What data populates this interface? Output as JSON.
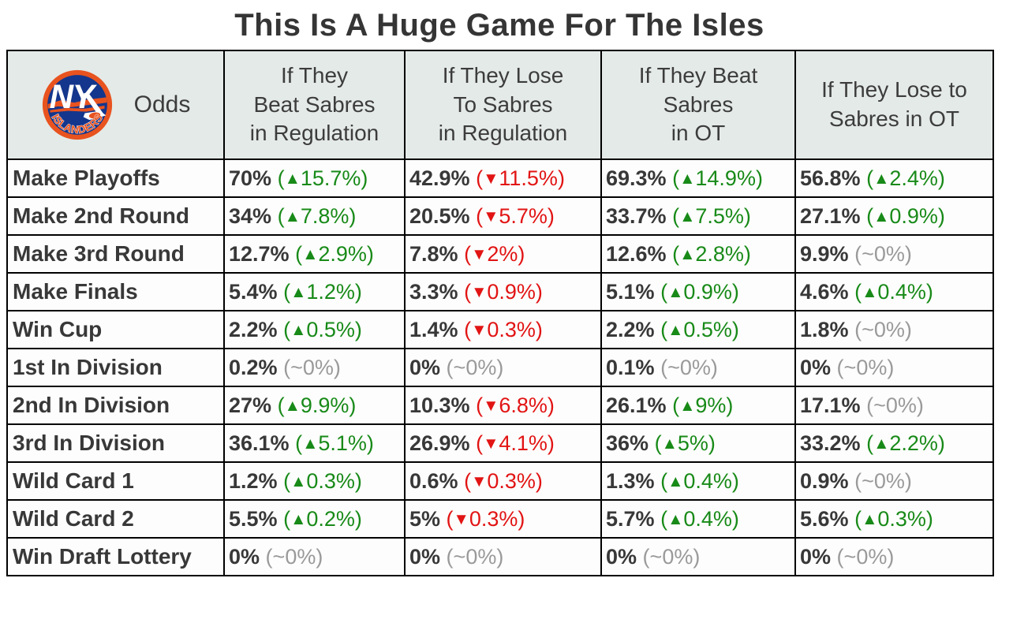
{
  "title": "This Is A Huge Game For The Isles",
  "icons": {
    "logo": "ny-islanders-logo",
    "up_arrow": "▲",
    "down_arrow": "▼"
  },
  "colors": {
    "positive_change": "#188a18",
    "negative_change": "#e21414",
    "neutral_change": "#9a9a9a",
    "header_background": "#e4eae8",
    "text": "#383838",
    "grid_border": "#000000",
    "logo_orange": "#e8531f",
    "logo_blue": "#14368c"
  },
  "chart_data": {
    "type": "table",
    "title": "This Is A Huge Game For The Isles",
    "columns": [
      "Odds",
      "If They Beat Sabres in Regulation",
      "If They Lose To Sabres in Regulation",
      "If They Beat Sabres in OT",
      "If They Lose to Sabres in OT"
    ],
    "column_lines": [
      [
        "If They",
        "Beat Sabres",
        "in Regulation"
      ],
      [
        "If They Lose",
        "To Sabres",
        "in Regulation"
      ],
      [
        "If They Beat",
        "Sabres",
        "in OT"
      ],
      [
        "If They Lose to",
        "Sabres in OT"
      ]
    ],
    "rows": [
      {
        "label": "Make Playoffs",
        "cells": [
          {
            "value": "70%",
            "delta": "15.7%",
            "direction": "up"
          },
          {
            "value": "42.9%",
            "delta": "11.5%",
            "direction": "down"
          },
          {
            "value": "69.3%",
            "delta": "14.9%",
            "direction": "up"
          },
          {
            "value": "56.8%",
            "delta": "2.4%",
            "direction": "up"
          }
        ]
      },
      {
        "label": "Make 2nd Round",
        "cells": [
          {
            "value": "34%",
            "delta": "7.8%",
            "direction": "up"
          },
          {
            "value": "20.5%",
            "delta": "5.7%",
            "direction": "down"
          },
          {
            "value": "33.7%",
            "delta": "7.5%",
            "direction": "up"
          },
          {
            "value": "27.1%",
            "delta": "0.9%",
            "direction": "up"
          }
        ]
      },
      {
        "label": "Make 3rd Round",
        "cells": [
          {
            "value": "12.7%",
            "delta": "2.9%",
            "direction": "up"
          },
          {
            "value": "7.8%",
            "delta": "2%",
            "direction": "down"
          },
          {
            "value": "12.6%",
            "delta": "2.8%",
            "direction": "up"
          },
          {
            "value": "9.9%",
            "delta": "~0%",
            "direction": "flat"
          }
        ]
      },
      {
        "label": "Make Finals",
        "cells": [
          {
            "value": "5.4%",
            "delta": "1.2%",
            "direction": "up"
          },
          {
            "value": "3.3%",
            "delta": "0.9%",
            "direction": "down"
          },
          {
            "value": "5.1%",
            "delta": "0.9%",
            "direction": "up"
          },
          {
            "value": "4.6%",
            "delta": "0.4%",
            "direction": "up"
          }
        ]
      },
      {
        "label": "Win Cup",
        "cells": [
          {
            "value": "2.2%",
            "delta": "0.5%",
            "direction": "up"
          },
          {
            "value": "1.4%",
            "delta": "0.3%",
            "direction": "down"
          },
          {
            "value": "2.2%",
            "delta": "0.5%",
            "direction": "up"
          },
          {
            "value": "1.8%",
            "delta": "~0%",
            "direction": "flat"
          }
        ]
      },
      {
        "label": "1st In Division",
        "cells": [
          {
            "value": "0.2%",
            "delta": "~0%",
            "direction": "flat"
          },
          {
            "value": "0%",
            "delta": "~0%",
            "direction": "flat"
          },
          {
            "value": "0.1%",
            "delta": "~0%",
            "direction": "flat"
          },
          {
            "value": "0%",
            "delta": "~0%",
            "direction": "flat"
          }
        ]
      },
      {
        "label": "2nd In Division",
        "cells": [
          {
            "value": "27%",
            "delta": "9.9%",
            "direction": "up"
          },
          {
            "value": "10.3%",
            "delta": "6.8%",
            "direction": "down"
          },
          {
            "value": "26.1%",
            "delta": "9%",
            "direction": "up"
          },
          {
            "value": "17.1%",
            "delta": "~0%",
            "direction": "flat"
          }
        ]
      },
      {
        "label": "3rd In Division",
        "cells": [
          {
            "value": "36.1%",
            "delta": "5.1%",
            "direction": "up"
          },
          {
            "value": "26.9%",
            "delta": "4.1%",
            "direction": "down"
          },
          {
            "value": "36%",
            "delta": "5%",
            "direction": "up"
          },
          {
            "value": "33.2%",
            "delta": "2.2%",
            "direction": "up"
          }
        ]
      },
      {
        "label": "Wild Card 1",
        "cells": [
          {
            "value": "1.2%",
            "delta": "0.3%",
            "direction": "up"
          },
          {
            "value": "0.6%",
            "delta": "0.3%",
            "direction": "down"
          },
          {
            "value": "1.3%",
            "delta": "0.4%",
            "direction": "up"
          },
          {
            "value": "0.9%",
            "delta": "~0%",
            "direction": "flat"
          }
        ]
      },
      {
        "label": "Wild Card 2",
        "cells": [
          {
            "value": "5.5%",
            "delta": "0.2%",
            "direction": "up"
          },
          {
            "value": "5%",
            "delta": "0.3%",
            "direction": "down"
          },
          {
            "value": "5.7%",
            "delta": "0.4%",
            "direction": "up"
          },
          {
            "value": "5.6%",
            "delta": "0.3%",
            "direction": "up"
          }
        ]
      },
      {
        "label": "Win Draft Lottery",
        "cells": [
          {
            "value": "0%",
            "delta": "~0%",
            "direction": "flat"
          },
          {
            "value": "0%",
            "delta": "~0%",
            "direction": "flat"
          },
          {
            "value": "0%",
            "delta": "~0%",
            "direction": "flat"
          },
          {
            "value": "0%",
            "delta": "~0%",
            "direction": "flat"
          }
        ]
      }
    ]
  }
}
